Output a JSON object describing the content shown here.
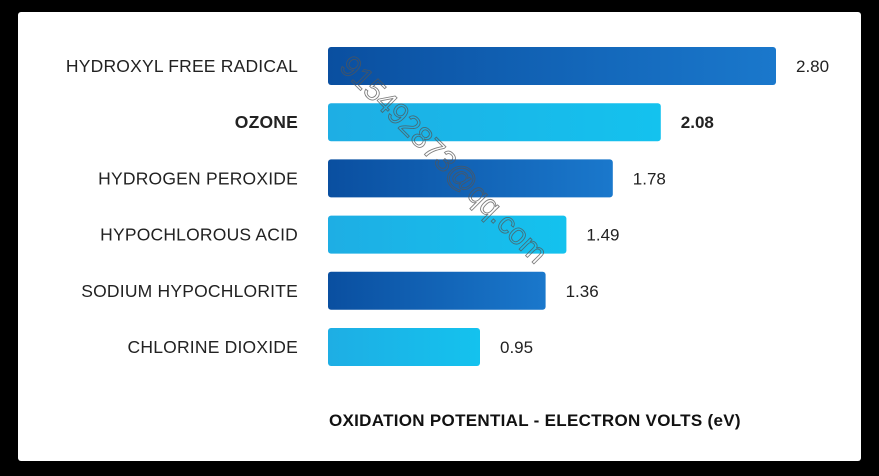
{
  "chart_data": {
    "type": "bar",
    "orientation": "horizontal",
    "categories": [
      "HYDROXYL FREE RADICAL",
      "OZONE",
      "HYDROGEN PEROXIDE",
      "HYPOCHLOROUS ACID",
      "SODIUM HYPOCHLORITE",
      "CHLORINE DIOXIDE"
    ],
    "values": [
      2.8,
      2.08,
      1.78,
      1.49,
      1.36,
      0.95
    ],
    "value_labels": [
      "2.80",
      "2.08",
      "1.78",
      "1.49",
      "1.36",
      "0.95"
    ],
    "highlighted_category": "OZONE",
    "xlabel": "OXIDATION POTENTIAL - ELECTRON VOLTS (eV)",
    "xlim": [
      0,
      2.8
    ],
    "grid": false,
    "legend": "none",
    "colors": {
      "dark_bar_start": "#0a4fa0",
      "dark_bar_end": "#1a78cc",
      "light_bar_start": "#1eaee4",
      "light_bar_end": "#14c2ee"
    }
  },
  "watermark": "915492873@qq.com"
}
